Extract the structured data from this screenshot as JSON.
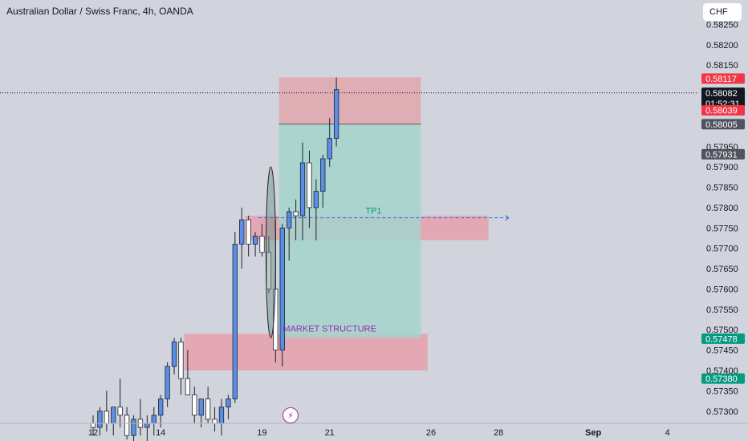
{
  "header": {
    "title": "Australian Dollar / Swiss Franc, 4h, OANDA",
    "currency": "CHF"
  },
  "colors": {
    "background": "#d1d4dc",
    "bull": "#5b8ee6",
    "bear": "#ffffff",
    "wick": "#1e222d",
    "zone": "#e89aa6",
    "stop_zone": "#e0a7ad",
    "target_zone": "#a4d3cd",
    "tag_red": "#f23645",
    "tag_dark": "#131722",
    "tag_grey": "#50535e",
    "tag_green": "#089981"
  },
  "chart_data": {
    "type": "candlestick",
    "title": "Australian Dollar / Swiss Franc, 4h, OANDA",
    "timeframe": "4h",
    "ylim": [
      0.5727,
      0.5831
    ],
    "y_ticks": [
      0.573,
      0.5735,
      0.574,
      0.5745,
      0.575,
      0.5755,
      0.576,
      0.5765,
      0.577,
      0.5775,
      0.578,
      0.5785,
      0.579,
      0.5795,
      0.5815,
      0.582,
      0.5825
    ],
    "x_labels": [
      {
        "label": "12",
        "index": 0
      },
      {
        "label": "14",
        "index": 10
      },
      {
        "label": "19",
        "index": 25
      },
      {
        "label": "21",
        "index": 35
      },
      {
        "label": "26",
        "index": 50
      },
      {
        "label": "28",
        "index": 60
      },
      {
        "label": "Sep",
        "index": 74
      },
      {
        "label": "4",
        "index": 85
      }
    ],
    "candles": [
      {
        "o": 0.5727,
        "h": 0.5729,
        "l": 0.5724,
        "c": 0.5726
      },
      {
        "o": 0.5726,
        "h": 0.5731,
        "l": 0.5724,
        "c": 0.573
      },
      {
        "o": 0.573,
        "h": 0.5735,
        "l": 0.5725,
        "c": 0.5727
      },
      {
        "o": 0.5727,
        "h": 0.5731,
        "l": 0.5724,
        "c": 0.5731
      },
      {
        "o": 0.5731,
        "h": 0.5738,
        "l": 0.5726,
        "c": 0.5729
      },
      {
        "o": 0.5729,
        "h": 0.5731,
        "l": 0.5723,
        "c": 0.5724
      },
      {
        "o": 0.5724,
        "h": 0.5729,
        "l": 0.5722,
        "c": 0.5728
      },
      {
        "o": 0.5728,
        "h": 0.5733,
        "l": 0.5724,
        "c": 0.5726
      },
      {
        "o": 0.5726,
        "h": 0.5729,
        "l": 0.5722,
        "c": 0.5727
      },
      {
        "o": 0.5727,
        "h": 0.5731,
        "l": 0.5724,
        "c": 0.5729
      },
      {
        "o": 0.5729,
        "h": 0.5734,
        "l": 0.5726,
        "c": 0.5733
      },
      {
        "o": 0.5733,
        "h": 0.5742,
        "l": 0.5731,
        "c": 0.5741
      },
      {
        "o": 0.5741,
        "h": 0.5748,
        "l": 0.5739,
        "c": 0.5747
      },
      {
        "o": 0.5747,
        "h": 0.5748,
        "l": 0.5734,
        "c": 0.5738
      },
      {
        "o": 0.5738,
        "h": 0.5745,
        "l": 0.5734,
        "c": 0.5734
      },
      {
        "o": 0.5734,
        "h": 0.5736,
        "l": 0.5727,
        "c": 0.5729
      },
      {
        "o": 0.5729,
        "h": 0.5733,
        "l": 0.5726,
        "c": 0.5733
      },
      {
        "o": 0.5733,
        "h": 0.5736,
        "l": 0.5727,
        "c": 0.5728
      },
      {
        "o": 0.5728,
        "h": 0.5731,
        "l": 0.5725,
        "c": 0.5727
      },
      {
        "o": 0.5727,
        "h": 0.5733,
        "l": 0.5724,
        "c": 0.5731
      },
      {
        "o": 0.5731,
        "h": 0.5734,
        "l": 0.5728,
        "c": 0.5733
      },
      {
        "o": 0.5733,
        "h": 0.5774,
        "l": 0.5732,
        "c": 0.5771
      },
      {
        "o": 0.5771,
        "h": 0.578,
        "l": 0.5765,
        "c": 0.5777
      },
      {
        "o": 0.5777,
        "h": 0.5778,
        "l": 0.5768,
        "c": 0.5771
      },
      {
        "o": 0.5771,
        "h": 0.5774,
        "l": 0.5768,
        "c": 0.5773
      },
      {
        "o": 0.5773,
        "h": 0.5776,
        "l": 0.5768,
        "c": 0.5769
      },
      {
        "o": 0.5769,
        "h": 0.5773,
        "l": 0.5759,
        "c": 0.576
      },
      {
        "o": 0.576,
        "h": 0.5777,
        "l": 0.5742,
        "c": 0.5745
      },
      {
        "o": 0.5745,
        "h": 0.5776,
        "l": 0.5741,
        "c": 0.5775
      },
      {
        "o": 0.5775,
        "h": 0.578,
        "l": 0.5767,
        "c": 0.5779
      },
      {
        "o": 0.5779,
        "h": 0.5782,
        "l": 0.5772,
        "c": 0.5778
      },
      {
        "o": 0.5778,
        "h": 0.5796,
        "l": 0.5772,
        "c": 0.5791
      },
      {
        "o": 0.5791,
        "h": 0.5794,
        "l": 0.5775,
        "c": 0.578
      },
      {
        "o": 0.578,
        "h": 0.5787,
        "l": 0.5772,
        "c": 0.5784
      },
      {
        "o": 0.5784,
        "h": 0.5793,
        "l": 0.578,
        "c": 0.5792
      },
      {
        "o": 0.5792,
        "h": 0.5802,
        "l": 0.579,
        "c": 0.5797
      },
      {
        "o": 0.5797,
        "h": 0.5812,
        "l": 0.5795,
        "c": 0.5809
      }
    ],
    "zones": [
      {
        "from_index": 13.5,
        "to_index": 49.5,
        "top": 0.5749,
        "bottom": 0.574
      },
      {
        "from_index": 22.5,
        "to_index": 58.5,
        "top": 0.5778,
        "bottom": 0.5772
      }
    ],
    "position": {
      "from_index": 27.5,
      "to_index": 48.5,
      "stop_top": 0.5812,
      "entry": 0.58005,
      "target": 0.5748
    },
    "ellipse": {
      "index": 26.3,
      "top": 0.579,
      "bottom": 0.5748
    },
    "tp_line": {
      "from_index": 24.5,
      "to_index": 61.5,
      "price": 0.57775
    },
    "annotations": [
      {
        "text": "TP1",
        "index": 41.5,
        "price": 0.57785,
        "color": "#089981"
      },
      {
        "text": "MARKET STRUCTURE",
        "index": 35,
        "price": 0.57496,
        "color": "#9c27b0"
      }
    ],
    "price_tags": [
      {
        "label": "0.58117",
        "price": 0.58117,
        "color": "#f23645"
      },
      {
        "label": "0.58082",
        "price": 0.58082,
        "color": "#131722",
        "sub": "01:52:31"
      },
      {
        "label": "0.58039",
        "price": 0.58039,
        "color": "#f23645"
      },
      {
        "label": "0.58005",
        "price": 0.58005,
        "color": "#50535e"
      },
      {
        "label": "0.57931",
        "price": 0.57931,
        "color": "#50535e"
      },
      {
        "label": "0.57478",
        "price": 0.57478,
        "color": "#089981"
      },
      {
        "label": "0.57380",
        "price": 0.5738,
        "color": "#089981"
      }
    ],
    "current_price": 0.58082
  }
}
